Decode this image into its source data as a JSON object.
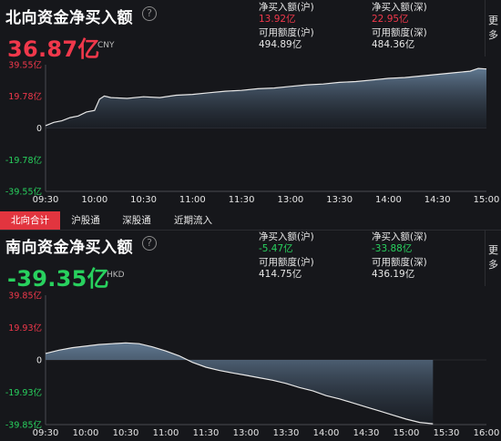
{
  "north": {
    "title": "北向资金净买入额",
    "help_icon": "question-circle-icon",
    "value": "36.87亿",
    "currency": "CNY",
    "stats": {
      "sh_net_label": "净买入额(沪)",
      "sh_net_value": "13.92亿",
      "sz_net_label": "净买入额(深)",
      "sz_net_value": "22.95亿",
      "sh_quota_label": "可用额度(沪)",
      "sh_quota_value": "494.89亿",
      "sz_quota_label": "可用额度(深)",
      "sz_quota_value": "484.36亿"
    },
    "more_label": "更多"
  },
  "tabs": [
    "北向合计",
    "沪股通",
    "深股通",
    "近期流入"
  ],
  "active_tab": 0,
  "south": {
    "title": "南向资金净买入额",
    "help_icon": "question-circle-icon",
    "value": "-39.35亿",
    "currency": "HKD",
    "stats": {
      "sh_net_label": "净买入额(沪)",
      "sh_net_value": "-5.47亿",
      "sz_net_label": "净买入额(深)",
      "sz_net_value": "-33.88亿",
      "sh_quota_label": "可用额度(沪)",
      "sh_quota_value": "414.75亿",
      "sz_quota_label": "可用额度(深)",
      "sz_quota_value": "436.19亿"
    },
    "more_label": "更多"
  },
  "colors": {
    "up": "#f0384b",
    "down": "#28d15e",
    "accent": "#e2353f",
    "line": "#e8e8e8"
  },
  "chart_data": [
    {
      "type": "area",
      "y_ticks": [
        39.55,
        19.78,
        0,
        -19.78,
        -39.55
      ],
      "y_tick_labels": [
        "39.55亿",
        "19.78亿",
        "0",
        "-19.78亿",
        "-39.55亿"
      ],
      "ylim": [
        -39.55,
        39.55
      ],
      "x_ticks": [
        "09:30",
        "10:00",
        "10:30",
        "11:00",
        "11:30",
        "13:00",
        "13:30",
        "14:00",
        "14:30",
        "15:00"
      ],
      "x_index": [
        0,
        30,
        60,
        90,
        120,
        150,
        180,
        210,
        240,
        270
      ],
      "points": [
        [
          0,
          1.5
        ],
        [
          5,
          3.5
        ],
        [
          10,
          4.5
        ],
        [
          15,
          6.5
        ],
        [
          20,
          7.5
        ],
        [
          25,
          10
        ],
        [
          30,
          11
        ],
        [
          33,
          18
        ],
        [
          36,
          20
        ],
        [
          40,
          19
        ],
        [
          50,
          18.5
        ],
        [
          60,
          19.5
        ],
        [
          70,
          19
        ],
        [
          80,
          20.5
        ],
        [
          90,
          21
        ],
        [
          100,
          22
        ],
        [
          110,
          23
        ],
        [
          120,
          23.5
        ],
        [
          130,
          24.5
        ],
        [
          140,
          25
        ],
        [
          150,
          26
        ],
        [
          160,
          27
        ],
        [
          170,
          27.5
        ],
        [
          180,
          28.5
        ],
        [
          190,
          29
        ],
        [
          200,
          30
        ],
        [
          210,
          31
        ],
        [
          220,
          31.5
        ],
        [
          230,
          32.5
        ],
        [
          240,
          33.5
        ],
        [
          250,
          34.5
        ],
        [
          260,
          35.5
        ],
        [
          265,
          37.2
        ],
        [
          270,
          36.87
        ]
      ],
      "grid": false
    },
    {
      "type": "area",
      "y_ticks": [
        39.85,
        19.93,
        0,
        -19.93,
        -39.85
      ],
      "y_tick_labels": [
        "39.85亿",
        "19.93亿",
        "0",
        "-19.93亿",
        "-39.85亿"
      ],
      "ylim": [
        -39.85,
        39.85
      ],
      "x_ticks": [
        "09:30",
        "10:00",
        "10:30",
        "11:00",
        "11:30",
        "13:00",
        "13:30",
        "14:00",
        "14:30",
        "15:00",
        "15:30",
        "16:00"
      ],
      "x_index": [
        0,
        30,
        60,
        90,
        120,
        150,
        180,
        210,
        240,
        270,
        300,
        330
      ],
      "points": [
        [
          0,
          4
        ],
        [
          10,
          6
        ],
        [
          20,
          7.5
        ],
        [
          30,
          8.5
        ],
        [
          40,
          9.5
        ],
        [
          50,
          10
        ],
        [
          60,
          10.5
        ],
        [
          70,
          10
        ],
        [
          80,
          8
        ],
        [
          90,
          5.5
        ],
        [
          100,
          2.5
        ],
        [
          110,
          -1.5
        ],
        [
          120,
          -4.5
        ],
        [
          130,
          -6.5
        ],
        [
          140,
          -8
        ],
        [
          150,
          -9.5
        ],
        [
          160,
          -11
        ],
        [
          170,
          -12.5
        ],
        [
          180,
          -14.5
        ],
        [
          190,
          -17
        ],
        [
          200,
          -19
        ],
        [
          210,
          -22
        ],
        [
          220,
          -24
        ],
        [
          230,
          -26.5
        ],
        [
          240,
          -29
        ],
        [
          250,
          -31.5
        ],
        [
          260,
          -34
        ],
        [
          270,
          -36.5
        ],
        [
          280,
          -38.5
        ],
        [
          290,
          -39.35
        ]
      ],
      "grid": false
    }
  ]
}
